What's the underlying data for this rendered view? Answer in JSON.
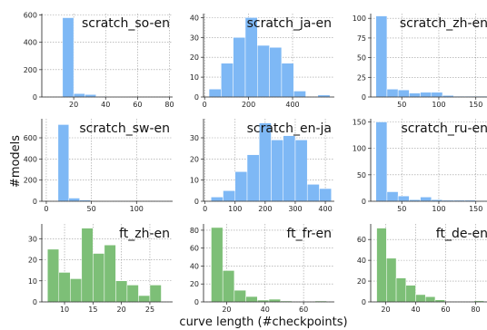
{
  "figure": {
    "xlabel": "curve length (#checkpoints)",
    "ylabel": "#models"
  },
  "chart_data": [
    {
      "type": "bar",
      "title": "scratch_so-en",
      "color": "#7eb8f5",
      "bins": [
        [
          13,
          20
        ],
        [
          20,
          27
        ],
        [
          27,
          34
        ],
        [
          34,
          41
        ],
        [
          41,
          48
        ],
        [
          48,
          55
        ],
        [
          55,
          62
        ],
        [
          62,
          69
        ],
        [
          69,
          76
        ],
        [
          76,
          83
        ]
      ],
      "values": [
        580,
        25,
        18,
        5,
        3,
        2,
        0,
        0,
        0,
        0
      ],
      "xlim": [
        0,
        82
      ],
      "ylim": [
        0,
        610
      ],
      "xticks": [
        20,
        40,
        60,
        80
      ],
      "yticks": [
        0,
        200,
        400,
        600
      ],
      "grid": true
    },
    {
      "type": "bar",
      "title": "scratch_ja-en",
      "color": "#7eb8f5",
      "bins": [
        [
          20,
          75
        ],
        [
          75,
          130
        ],
        [
          130,
          185
        ],
        [
          185,
          240
        ],
        [
          240,
          295
        ],
        [
          295,
          350
        ],
        [
          350,
          405
        ],
        [
          405,
          460
        ],
        [
          460,
          515
        ],
        [
          515,
          570
        ]
      ],
      "values": [
        4,
        17,
        30,
        40,
        26,
        25,
        17,
        3,
        0,
        1
      ],
      "xlim": [
        -5,
        590
      ],
      "ylim": [
        0,
        42
      ],
      "xticks": [
        0,
        200,
        400
      ],
      "yticks": [
        0,
        10,
        20,
        30,
        40
      ],
      "grid": true
    },
    {
      "type": "bar",
      "title": "scratch_zh-en",
      "color": "#7eb8f5",
      "bins": [
        [
          15,
          30
        ],
        [
          30,
          45
        ],
        [
          45,
          60
        ],
        [
          60,
          75
        ],
        [
          75,
          90
        ],
        [
          90,
          105
        ],
        [
          105,
          120
        ],
        [
          120,
          135
        ],
        [
          135,
          150
        ],
        [
          150,
          165
        ]
      ],
      "values": [
        103,
        10,
        9,
        5,
        6,
        6,
        2,
        1,
        1,
        1
      ],
      "xlim": [
        8,
        170
      ],
      "ylim": [
        0,
        106
      ],
      "xticks": [
        50,
        100,
        150
      ],
      "yticks": [
        0,
        25,
        50,
        75,
        100
      ],
      "grid": true
    },
    {
      "type": "bar",
      "title": "scratch_sw-en",
      "color": "#7eb8f5",
      "bins": [
        [
          13,
          25
        ],
        [
          25,
          37
        ],
        [
          37,
          49
        ],
        [
          49,
          61
        ],
        [
          61,
          73
        ],
        [
          73,
          85
        ],
        [
          85,
          97
        ],
        [
          97,
          109
        ],
        [
          109,
          121
        ],
        [
          121,
          133
        ]
      ],
      "values": [
        725,
        30,
        12,
        2,
        2,
        1,
        1,
        0,
        0,
        1
      ],
      "xlim": [
        -5,
        140
      ],
      "ylim": [
        0,
        780
      ],
      "xticks": [
        0,
        50,
        100
      ],
      "yticks": [
        0,
        200,
        400,
        600
      ],
      "grid": true
    },
    {
      "type": "bar",
      "title": "scratch_en-ja",
      "color": "#7eb8f5",
      "bins": [
        [
          20,
          60
        ],
        [
          60,
          100
        ],
        [
          100,
          140
        ],
        [
          140,
          180
        ],
        [
          180,
          220
        ],
        [
          220,
          260
        ],
        [
          260,
          300
        ],
        [
          300,
          340
        ],
        [
          340,
          380
        ],
        [
          380,
          420
        ]
      ],
      "values": [
        2,
        5,
        14,
        22,
        37,
        29,
        31,
        29,
        8,
        6
      ],
      "xlim": [
        -5,
        430
      ],
      "ylim": [
        0,
        39
      ],
      "xticks": [
        0,
        100,
        200,
        300,
        400
      ],
      "yticks": [
        0,
        10,
        20,
        30
      ],
      "grid": true
    },
    {
      "type": "bar",
      "title": "scratch_ru-en",
      "color": "#7eb8f5",
      "bins": [
        [
          15,
          30
        ],
        [
          30,
          45
        ],
        [
          45,
          60
        ],
        [
          60,
          75
        ],
        [
          75,
          90
        ],
        [
          90,
          105
        ],
        [
          105,
          120
        ],
        [
          120,
          135
        ],
        [
          135,
          150
        ],
        [
          150,
          165
        ]
      ],
      "values": [
        150,
        18,
        10,
        3,
        8,
        3,
        2,
        2,
        2,
        1
      ],
      "xlim": [
        8,
        170
      ],
      "ylim": [
        0,
        156
      ],
      "xticks": [
        50,
        100,
        150
      ],
      "yticks": [
        0,
        50,
        100,
        150
      ],
      "grid": true
    },
    {
      "type": "bar",
      "title": "ft_zh-en",
      "color": "#7dbf77",
      "bins": [
        [
          7,
          9
        ],
        [
          9,
          11
        ],
        [
          11,
          13
        ],
        [
          13,
          15
        ],
        [
          15,
          17
        ],
        [
          17,
          19
        ],
        [
          19,
          21
        ],
        [
          21,
          23
        ],
        [
          23,
          25
        ],
        [
          25,
          27
        ]
      ],
      "values": [
        25,
        14,
        11,
        35,
        23,
        27,
        10,
        8,
        3,
        8
      ],
      "xlim": [
        6,
        29
      ],
      "ylim": [
        0,
        37
      ],
      "xticks": [
        10,
        15,
        20,
        25
      ],
      "yticks": [
        0,
        10,
        20,
        30
      ],
      "grid": true
    },
    {
      "type": "bar",
      "title": "ft_fr-en",
      "color": "#7dbf77",
      "bins": [
        [
          12,
          18
        ],
        [
          18,
          24
        ],
        [
          24,
          30
        ],
        [
          30,
          36
        ],
        [
          36,
          42
        ],
        [
          42,
          48
        ],
        [
          48,
          54
        ],
        [
          54,
          60
        ],
        [
          60,
          66
        ],
        [
          66,
          72
        ]
      ],
      "values": [
        83,
        35,
        13,
        6,
        2,
        3,
        1,
        0,
        0,
        1
      ],
      "xlim": [
        8,
        76
      ],
      "ylim": [
        0,
        87
      ],
      "xticks": [
        20,
        40,
        60
      ],
      "yticks": [
        0,
        20,
        40,
        60,
        80
      ],
      "grid": true
    },
    {
      "type": "bar",
      "title": "ft_de-en",
      "color": "#7dbf77",
      "bins": [
        [
          14,
          20.5
        ],
        [
          20.5,
          27
        ],
        [
          27,
          33.5
        ],
        [
          33.5,
          40
        ],
        [
          40,
          46.5
        ],
        [
          46.5,
          53
        ],
        [
          53,
          59.5
        ],
        [
          59.5,
          66
        ],
        [
          66,
          72.5
        ],
        [
          72.5,
          79
        ],
        [
          79,
          85.5
        ]
      ],
      "values": [
        71,
        42,
        23,
        16,
        7,
        5,
        2,
        0,
        0,
        0,
        1
      ],
      "xlim": [
        10,
        90
      ],
      "ylim": [
        0,
        75
      ],
      "xticks": [
        20,
        40,
        60,
        80
      ],
      "yticks": [
        0,
        20,
        40,
        60
      ],
      "grid": true
    }
  ]
}
